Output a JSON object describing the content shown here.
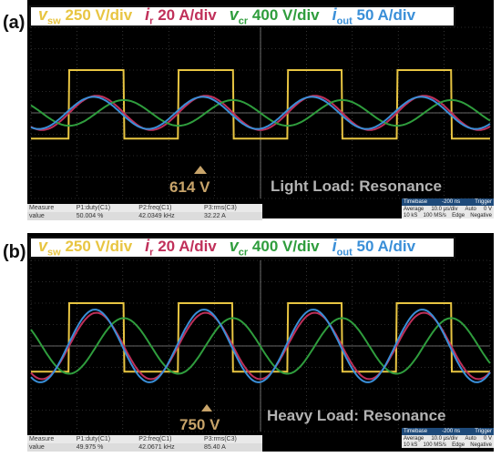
{
  "legend": {
    "vsw": {
      "sym": "v",
      "sub": "sw",
      "scale": "250 V/div",
      "color": "#e8c542"
    },
    "ir": {
      "sym": "i",
      "sub": "r",
      "scale": "20 A/div",
      "color": "#c0305a"
    },
    "vcr": {
      "sym": "v",
      "sub": "cr",
      "scale": "400 V/div",
      "color": "#2f9d3d"
    },
    "iout": {
      "sym": "i",
      "sub": "out",
      "scale": "50 A/div",
      "color": "#3a8fd8"
    }
  },
  "panels": [
    {
      "label": "(a)",
      "annotation": "614 V",
      "load_text": "Light Load: Resonance",
      "measure": {
        "headers": [
          "Measure",
          "P1:duty(C1)",
          "P2:freq(C1)",
          "P3:rms(C3)"
        ],
        "values": [
          "value",
          "50.004 %",
          "42.0349 kHz",
          "32.22 A"
        ]
      },
      "timebase": {
        "title": "Timebase",
        "offset": "-200 ns",
        "trigger": "Trigger",
        "rows": [
          [
            "Average",
            "10.0 µs/div",
            "Auto",
            "0 V"
          ],
          [
            "10 kS",
            "100 MS/s",
            "Edge",
            "Negative"
          ]
        ]
      }
    },
    {
      "label": "(b)",
      "annotation": "750 V",
      "load_text": "Heavy Load: Resonance",
      "measure": {
        "headers": [
          "Measure",
          "P1:duty(C1)",
          "P2:freq(C1)",
          "P3:rms(C3)"
        ],
        "values": [
          "value",
          "49.975 %",
          "42.0671 kHz",
          "85.40 A"
        ]
      },
      "timebase": {
        "title": "Timebase",
        "offset": "-200 ns",
        "trigger": "Trigger",
        "rows": [
          [
            "Average",
            "10.0 µs/div",
            "Auto",
            "0 V"
          ],
          [
            "10 kS",
            "100 MS/s",
            "Edge",
            "Negative"
          ]
        ]
      }
    }
  ],
  "chart_data": [
    {
      "type": "line",
      "title": "(a) Light Load: Resonance",
      "x_unit": "µs",
      "x_range": [
        0,
        100
      ],
      "divisions": {
        "x": 10,
        "y": 8
      },
      "grid": true,
      "switching_frequency_kHz": 42.0349,
      "series": [
        {
          "name": "vsw",
          "scale": "250 V/div",
          "shape": "square",
          "amplitude_div": 1.6,
          "dc_div": 0.4
        },
        {
          "name": "ir",
          "scale": "20 A/div",
          "shape": "sine",
          "amplitude_div": 0.8,
          "phase_deg": 0
        },
        {
          "name": "vcr",
          "scale": "400 V/div",
          "shape": "sine",
          "amplitude_div": 0.6,
          "phase_deg": 90
        },
        {
          "name": "iout",
          "scale": "50 A/div",
          "shape": "sine",
          "amplitude_div": 0.75,
          "phase_deg": -10
        }
      ]
    },
    {
      "type": "line",
      "title": "(b) Heavy Load: Resonance",
      "x_unit": "µs",
      "x_range": [
        0,
        100
      ],
      "divisions": {
        "x": 10,
        "y": 8
      },
      "grid": true,
      "switching_frequency_kHz": 42.0671,
      "series": [
        {
          "name": "vsw",
          "scale": "250 V/div",
          "shape": "square",
          "amplitude_div": 1.6,
          "dc_div": 0.4
        },
        {
          "name": "ir",
          "scale": "20 A/div",
          "shape": "sine",
          "amplitude_div": 1.55,
          "phase_deg": 0
        },
        {
          "name": "vcr",
          "scale": "400 V/div",
          "shape": "sine",
          "amplitude_div": 1.3,
          "phase_deg": 90
        },
        {
          "name": "iout",
          "scale": "50 A/div",
          "shape": "sine",
          "amplitude_div": 1.7,
          "phase_deg": -5
        }
      ]
    }
  ]
}
